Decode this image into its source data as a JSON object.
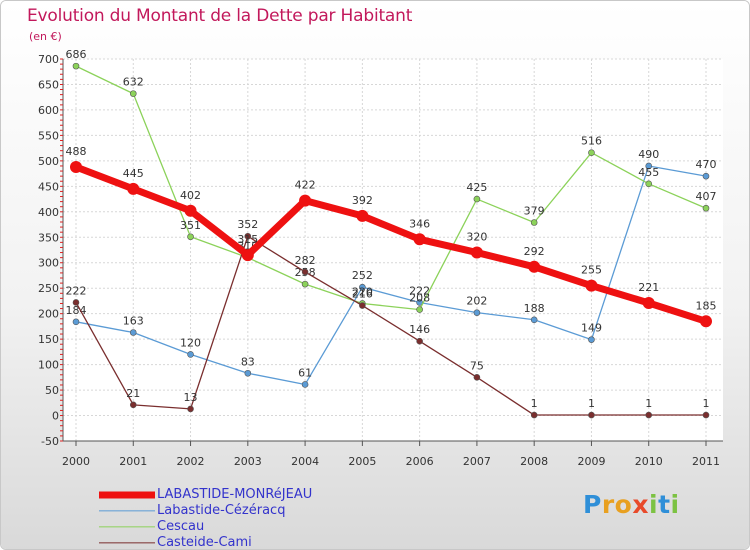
{
  "header": {
    "title": "Evolution du Montant de la Dette par Habitant",
    "unit": "(en €)"
  },
  "logo": {
    "letters": [
      {
        "ch": "P",
        "color": "#2f8fd8"
      },
      {
        "ch": "r",
        "color": "#e8a020"
      },
      {
        "ch": "o",
        "color": "#e8a020"
      },
      {
        "ch": "x",
        "color": "#e84a2a"
      },
      {
        "ch": "i",
        "color": "#7cc242"
      },
      {
        "ch": "t",
        "color": "#2f8fd8"
      },
      {
        "ch": "i",
        "color": "#7cc242"
      }
    ]
  },
  "chart_data": {
    "type": "line",
    "title": "Evolution du Montant de la Dette par Habitant",
    "ylabel": "(en €)",
    "x": [
      "2000",
      "2001",
      "2002",
      "2003",
      "2004",
      "2005",
      "2006",
      "2007",
      "2008",
      "2009",
      "2010",
      "2011"
    ],
    "yticks": [
      -50,
      0,
      50,
      100,
      150,
      200,
      250,
      300,
      350,
      400,
      450,
      500,
      550,
      600,
      650,
      700
    ],
    "ylim": [
      -50,
      700
    ],
    "grid": true,
    "legend_position": "bottom-left",
    "series": [
      {
        "name": "LABASTIDE-MONRéJEAU",
        "color": "#ee1111",
        "width": 7,
        "marker": 6,
        "values": [
          488,
          445,
          402,
          315,
          422,
          392,
          346,
          320,
          292,
          255,
          221,
          185
        ]
      },
      {
        "name": "Labastide-Cézéracq",
        "color": "#5b9bd5",
        "width": 1.3,
        "marker": 3,
        "values": [
          184,
          163,
          120,
          83,
          61,
          252,
          222,
          202,
          188,
          149,
          490,
          470
        ]
      },
      {
        "name": "Cescau",
        "color": "#8cd25a",
        "width": 1.3,
        "marker": 3,
        "values": [
          686,
          632,
          351,
          310,
          258,
          220,
          208,
          425,
          379,
          516,
          455,
          407
        ]
      },
      {
        "name": "Casteide-Cami",
        "color": "#7a2e2e",
        "width": 1.3,
        "marker": 3,
        "values": [
          222,
          21,
          13,
          352,
          282,
          216,
          146,
          75,
          1,
          1,
          1,
          1
        ]
      }
    ]
  }
}
